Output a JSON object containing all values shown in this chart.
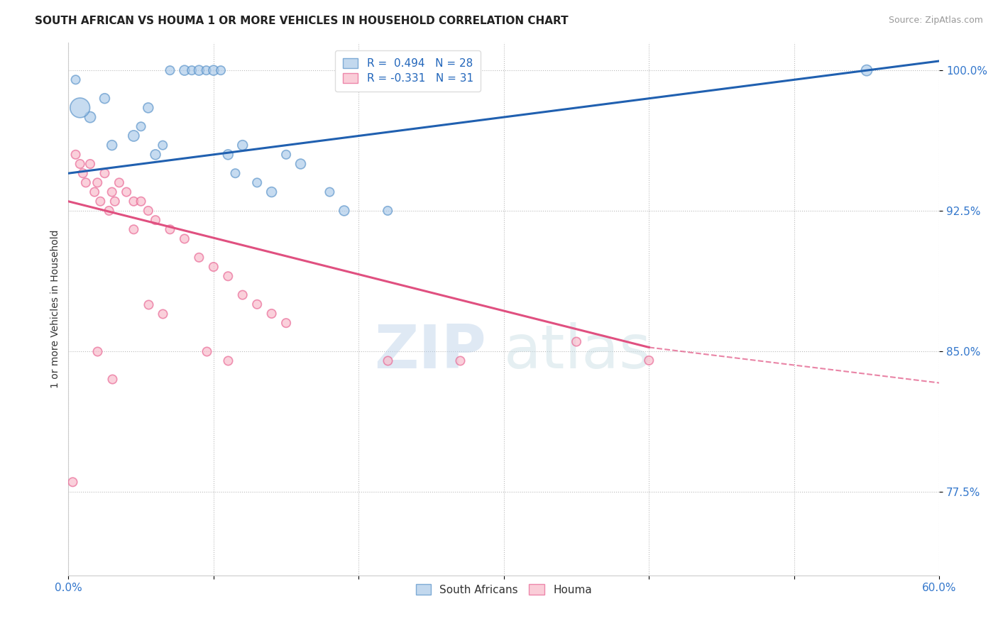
{
  "title": "SOUTH AFRICAN VS HOUMA 1 OR MORE VEHICLES IN HOUSEHOLD CORRELATION CHART",
  "source": "Source: ZipAtlas.com",
  "ylabel": "1 or more Vehicles in Household",
  "x_min": 0.0,
  "x_max": 60.0,
  "y_min": 73.0,
  "y_max": 101.5,
  "x_ticks": [
    0.0,
    10.0,
    20.0,
    30.0,
    40.0,
    50.0,
    60.0
  ],
  "x_tick_labels": [
    "0.0%",
    "",
    "",
    "",
    "",
    "",
    "60.0%"
  ],
  "y_ticks": [
    77.5,
    85.0,
    92.5,
    100.0
  ],
  "y_tick_labels": [
    "77.5%",
    "85.0%",
    "92.5%",
    "100.0%"
  ],
  "blue_R": 0.494,
  "blue_N": 28,
  "pink_R": -0.331,
  "pink_N": 31,
  "legend_labels": [
    "South Africans",
    "Houma"
  ],
  "blue_color": "#a8c8e8",
  "pink_color": "#f8b8c8",
  "blue_edge_color": "#5590c8",
  "pink_edge_color": "#e86090",
  "blue_line_color": "#2060b0",
  "pink_line_color": "#e05080",
  "watermark_zip": "ZIP",
  "watermark_atlas": "atlas",
  "blue_line_x0": 0.0,
  "blue_line_y0": 94.5,
  "blue_line_x1": 60.0,
  "blue_line_y1": 100.5,
  "pink_line_x0": 0.0,
  "pink_line_y0": 93.0,
  "pink_line_x1": 40.0,
  "pink_line_y1": 85.2,
  "pink_dash_x0": 40.0,
  "pink_dash_y0": 85.2,
  "pink_dash_x1": 60.0,
  "pink_dash_y1": 83.3,
  "blue_scatter_x": [
    1.5,
    2.5,
    3.0,
    4.5,
    5.0,
    5.5,
    6.0,
    6.5,
    7.0,
    8.0,
    8.5,
    9.0,
    9.5,
    10.0,
    10.5,
    11.0,
    11.5,
    12.0,
    13.0,
    14.0,
    15.0,
    16.0,
    18.0,
    19.0,
    22.0,
    0.5,
    0.8,
    55.0
  ],
  "blue_scatter_y": [
    97.5,
    98.5,
    96.0,
    96.5,
    97.0,
    98.0,
    95.5,
    96.0,
    100.0,
    100.0,
    100.0,
    100.0,
    100.0,
    100.0,
    100.0,
    95.5,
    94.5,
    96.0,
    94.0,
    93.5,
    95.5,
    95.0,
    93.5,
    92.5,
    92.5,
    99.5,
    98.0,
    100.0
  ],
  "blue_scatter_size": [
    120,
    100,
    100,
    120,
    80,
    100,
    100,
    80,
    80,
    100,
    80,
    100,
    80,
    100,
    80,
    100,
    80,
    100,
    80,
    100,
    80,
    100,
    80,
    100,
    80,
    80,
    400,
    120
  ],
  "pink_scatter_x": [
    0.5,
    0.8,
    1.0,
    1.5,
    2.0,
    2.5,
    3.0,
    3.5,
    4.0,
    4.5,
    5.0,
    5.5,
    6.0,
    7.0,
    8.0,
    9.0,
    10.0,
    11.0,
    12.0,
    13.0,
    14.0,
    15.0,
    1.2,
    1.8,
    2.2,
    2.8,
    3.2,
    4.5,
    35.0,
    40.0,
    0.3
  ],
  "pink_scatter_y": [
    95.5,
    95.0,
    94.5,
    95.0,
    94.0,
    94.5,
    93.5,
    94.0,
    93.5,
    93.0,
    93.0,
    92.5,
    92.0,
    91.5,
    91.0,
    90.0,
    89.5,
    89.0,
    88.0,
    87.5,
    87.0,
    86.5,
    94.0,
    93.5,
    93.0,
    92.5,
    93.0,
    91.5,
    85.5,
    84.5,
    78.0
  ],
  "pink_scatter_size": [
    80,
    80,
    80,
    80,
    80,
    80,
    80,
    80,
    80,
    80,
    80,
    80,
    80,
    80,
    80,
    80,
    80,
    80,
    80,
    80,
    80,
    80,
    80,
    80,
    80,
    80,
    80,
    80,
    80,
    80,
    80
  ],
  "extra_pink_x": [
    2.0,
    3.0,
    5.5,
    6.5,
    9.5,
    11.0,
    22.0,
    27.0
  ],
  "extra_pink_y": [
    85.0,
    83.5,
    87.5,
    87.0,
    85.0,
    84.5,
    84.5,
    84.5
  ]
}
